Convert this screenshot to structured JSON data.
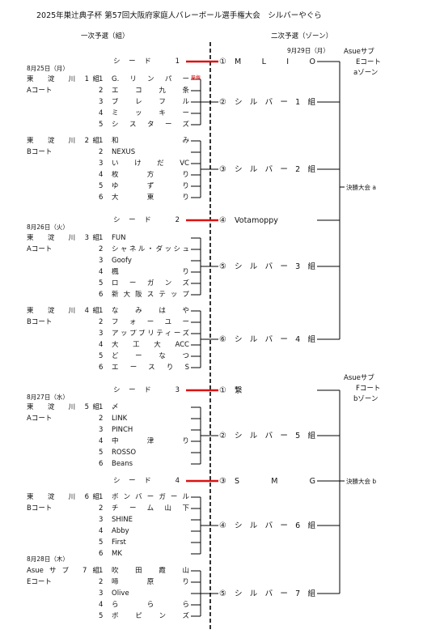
{
  "title": "2025年巣辻典子杯 第57回大阪府家庭人バレーボール選手権大会　シルバーやぐら",
  "headers": {
    "left": "一次予選（組）",
    "right": "二次予選（ゾーン）"
  },
  "round2_date": "9月29日（月）",
  "dates": [
    "8月25日（月）",
    "8月26日（火）",
    "8月27日（水）",
    "8月28日（木）"
  ],
  "zones": [
    {
      "venue": "Asueサブ",
      "court": "Eコート",
      "zone": "aゾーン",
      "final": "決勝大会 a"
    },
    {
      "venue": "Asueサブ",
      "court": "Fコート",
      "zone": "bゾーン",
      "final": "決勝大会 b"
    }
  ],
  "entries": [
    {
      "seed": "シード　1",
      "result_no": "①",
      "result": "M L I O"
    },
    {
      "group": "東　淀　川 1組",
      "court": "Aコート",
      "note": "棄権",
      "teams": [
        {
          "no": "1",
          "name": "G.リンパー"
        },
        {
          "no": "2",
          "name": "エコ九条"
        },
        {
          "no": "3",
          "name": "ブレフル"
        },
        {
          "no": "4",
          "name": "ミッキー"
        },
        {
          "no": "5",
          "name": "シスターズ"
        }
      ],
      "result_no": "②",
      "result": "シルバー1組"
    },
    {
      "group": "東　淀　川 2組",
      "court": "Bコート",
      "teams": [
        {
          "no": "1",
          "name": "和み"
        },
        {
          "no": "2",
          "name": "NEXUS"
        },
        {
          "no": "3",
          "name": "いけだVC"
        },
        {
          "no": "4",
          "name": "枚方り"
        },
        {
          "no": "5",
          "name": "ゆずり"
        },
        {
          "no": "6",
          "name": "大東り"
        }
      ],
      "result_no": "③",
      "result": "シルバー2組"
    },
    {
      "seed": "シード　2",
      "result_no": "④",
      "result": "Votamoppy"
    },
    {
      "group": "東　淀　川 3組",
      "court": "Aコート",
      "teams": [
        {
          "no": "1",
          "name": "FUN"
        },
        {
          "no": "2",
          "name": "シャネル・ダッシュ"
        },
        {
          "no": "3",
          "name": "Goofy"
        },
        {
          "no": "4",
          "name": "楓り"
        },
        {
          "no": "5",
          "name": "ローガンズ"
        },
        {
          "no": "6",
          "name": "新大阪ステップ"
        }
      ],
      "result_no": "⑤",
      "result": "シルバー3組"
    },
    {
      "group": "東　淀　川 4組",
      "court": "Bコート",
      "teams": [
        {
          "no": "1",
          "name": "なみはや"
        },
        {
          "no": "2",
          "name": "フォーユー"
        },
        {
          "no": "3",
          "name": "アップブリティーズ"
        },
        {
          "no": "4",
          "name": "大工大ACC"
        },
        {
          "no": "5",
          "name": "どーなつ"
        },
        {
          "no": "6",
          "name": "エースりS"
        }
      ],
      "result_no": "⑥",
      "result": "シルバー4組"
    },
    {
      "seed": "シード　3",
      "result_no": "①",
      "result": "繋"
    },
    {
      "group": "東　淀　川 5組",
      "court": "Aコート",
      "teams": [
        {
          "no": "1",
          "name": "〆"
        },
        {
          "no": "2",
          "name": "LINK"
        },
        {
          "no": "3",
          "name": "PINCH"
        },
        {
          "no": "4",
          "name": "中津り"
        },
        {
          "no": "5",
          "name": "ROSSO"
        },
        {
          "no": "6",
          "name": "Beans"
        }
      ],
      "result_no": "②",
      "result": "シルバー5組"
    },
    {
      "seed": "シード　4",
      "result_no": "③",
      "result": "S M G"
    },
    {
      "group": "東　淀　川 6組",
      "court": "Bコート",
      "teams": [
        {
          "no": "1",
          "name": "ボンバーガール"
        },
        {
          "no": "2",
          "name": "チーム山下"
        },
        {
          "no": "3",
          "name": "SHINE"
        },
        {
          "no": "4",
          "name": "Abby"
        },
        {
          "no": "5",
          "name": "First"
        },
        {
          "no": "6",
          "name": "MK"
        }
      ],
      "result_no": "④",
      "result": "シルバー6組"
    },
    {
      "group": "Asueサブ 7組",
      "court": "Eコート",
      "teams": [
        {
          "no": "1",
          "name": "吹田霞山"
        },
        {
          "no": "2",
          "name": "啼原り"
        },
        {
          "no": "3",
          "name": "Olive"
        },
        {
          "no": "4",
          "name": "ららら"
        },
        {
          "no": "5",
          "name": "ポピンズ"
        }
      ],
      "result_no": "⑤",
      "result": "シルバー7組"
    }
  ]
}
